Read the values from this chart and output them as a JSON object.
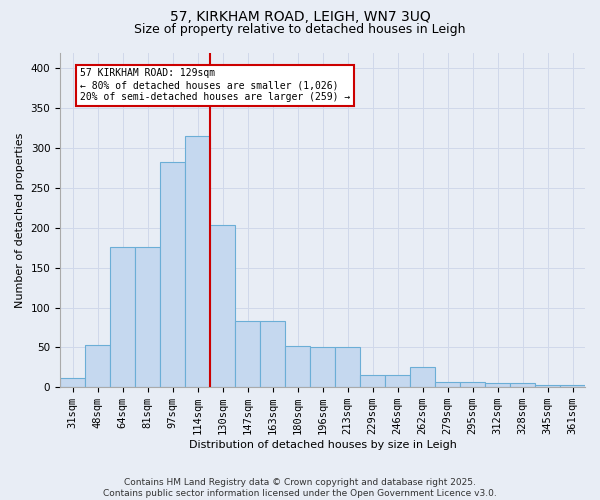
{
  "title_line1": "57, KIRKHAM ROAD, LEIGH, WN7 3UQ",
  "title_line2": "Size of property relative to detached houses in Leigh",
  "xlabel": "Distribution of detached houses by size in Leigh",
  "ylabel": "Number of detached properties",
  "bin_labels": [
    "31sqm",
    "48sqm",
    "64sqm",
    "81sqm",
    "97sqm",
    "114sqm",
    "130sqm",
    "147sqm",
    "163sqm",
    "180sqm",
    "196sqm",
    "213sqm",
    "229sqm",
    "246sqm",
    "262sqm",
    "279sqm",
    "295sqm",
    "312sqm",
    "328sqm",
    "345sqm",
    "361sqm"
  ],
  "bar_heights": [
    12,
    53,
    176,
    176,
    283,
    315,
    203,
    83,
    83,
    52,
    50,
    50,
    15,
    15,
    25,
    7,
    7,
    5,
    5,
    3,
    3
  ],
  "bar_color": "#c5d8ef",
  "bar_edge_color": "#6baed6",
  "vline_color": "#cc0000",
  "annotation_text": "57 KIRKHAM ROAD: 129sqm\n← 80% of detached houses are smaller (1,026)\n20% of semi-detached houses are larger (259) →",
  "annotation_box_facecolor": "#ffffff",
  "annotation_box_edgecolor": "#cc0000",
  "ylim": [
    0,
    420
  ],
  "yticks": [
    0,
    50,
    100,
    150,
    200,
    250,
    300,
    350,
    400
  ],
  "grid_color": "#d0d8ea",
  "background_color": "#e8edf5",
  "footer_text": "Contains HM Land Registry data © Crown copyright and database right 2025.\nContains public sector information licensed under the Open Government Licence v3.0.",
  "title_fontsize": 10,
  "subtitle_fontsize": 9,
  "axis_label_fontsize": 8,
  "tick_fontsize": 7.5,
  "annotation_fontsize": 7,
  "footer_fontsize": 6.5
}
